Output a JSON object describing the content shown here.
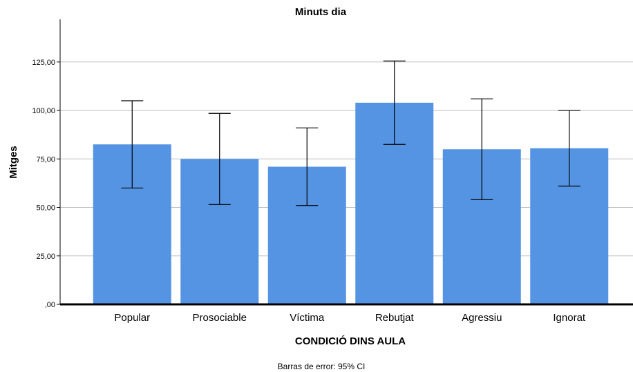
{
  "chart_data": {
    "type": "bar",
    "title": "Minuts dia",
    "xlabel": "CONDICIÓ DINS AULA",
    "ylabel": "Mitges",
    "footnote": "Barras de error: 95% CI",
    "categories": [
      "Popular",
      "Prosociable",
      "Víctima",
      "Rebutjat",
      "Agressiu",
      "Ignorat"
    ],
    "values": [
      82.5,
      75.0,
      71.0,
      104.0,
      80.0,
      80.5
    ],
    "ci_lower": [
      60.0,
      51.5,
      51.0,
      82.5,
      54.0,
      61.0
    ],
    "ci_upper": [
      105.0,
      98.5,
      91.0,
      125.5,
      106.0,
      100.0
    ],
    "ylim": [
      0,
      147
    ],
    "yticks": [
      0,
      25,
      50,
      75,
      100,
      125
    ],
    "ytick_labels": [
      ",00",
      "25,00",
      "50,00",
      "75,00",
      "100,00",
      "125,00"
    ],
    "grid": "horizontal",
    "bar_color": "#5594E3",
    "grid_color": "#BDBDBD",
    "axis_color": "#000000"
  }
}
